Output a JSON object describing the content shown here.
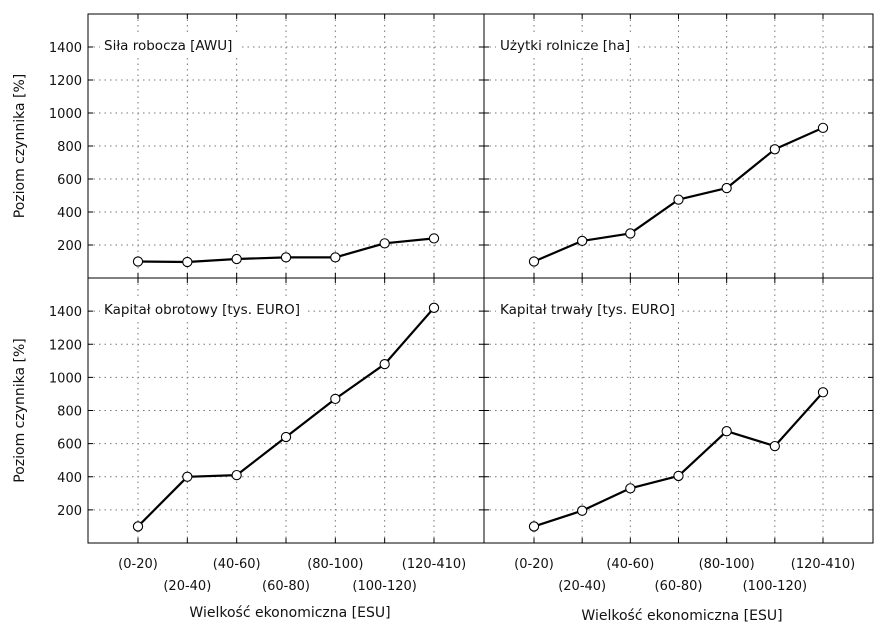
{
  "chart_data": [
    {
      "type": "line",
      "title": "Siła robocza [AWU]",
      "categories": [
        "(0-20)",
        "(20-40)",
        "(40-60)",
        "(60-80)",
        "(80-100)",
        "(100-120)",
        "(120-410)"
      ],
      "values": [
        100,
        97,
        115,
        125,
        125,
        210,
        240
      ],
      "ylabel": "Poziom czynnika [%]",
      "xlabel": "",
      "yticks": [
        200,
        400,
        600,
        800,
        1000,
        1200,
        1400
      ],
      "ylim": [
        0,
        1600
      ],
      "grid": true
    },
    {
      "type": "line",
      "title": "Użytki rolnicze [ha]",
      "categories": [
        "(0-20)",
        "(20-40)",
        "(40-60)",
        "(60-80)",
        "(80-100)",
        "(100-120)",
        "(120-410)"
      ],
      "values": [
        100,
        225,
        270,
        475,
        545,
        780,
        910
      ],
      "ylabel": "",
      "xlabel": "",
      "yticks": [
        200,
        400,
        600,
        800,
        1000,
        1200,
        1400
      ],
      "ylim": [
        0,
        1600
      ],
      "grid": true
    },
    {
      "type": "line",
      "title": "Kapitał obrotowy [tys. EURO]",
      "categories": [
        "(0-20)",
        "(20-40)",
        "(40-60)",
        "(60-80)",
        "(80-100)",
        "(100-120)",
        "(120-410)"
      ],
      "values": [
        100,
        400,
        410,
        640,
        870,
        1080,
        1420
      ],
      "ylabel": "Poziom czynnika [%]",
      "xlabel": "Wielkość ekonomiczna [ESU]",
      "yticks": [
        200,
        400,
        600,
        800,
        1000,
        1200,
        1400
      ],
      "ylim": [
        0,
        1600
      ],
      "grid": true
    },
    {
      "type": "line",
      "title": "Kapitał trwały [tys. EURO]",
      "categories": [
        "(0-20)",
        "(20-40)",
        "(40-60)",
        "(60-80)",
        "(80-100)",
        "(100-120)",
        "(120-410)"
      ],
      "values": [
        100,
        195,
        330,
        405,
        675,
        585,
        910
      ],
      "ylabel": "",
      "xlabel": "Wielkość ekonomiczna [ESU]",
      "yticks": [
        200,
        400,
        600,
        800,
        1000,
        1200,
        1400
      ],
      "ylim": [
        0,
        1600
      ],
      "grid": true
    }
  ]
}
